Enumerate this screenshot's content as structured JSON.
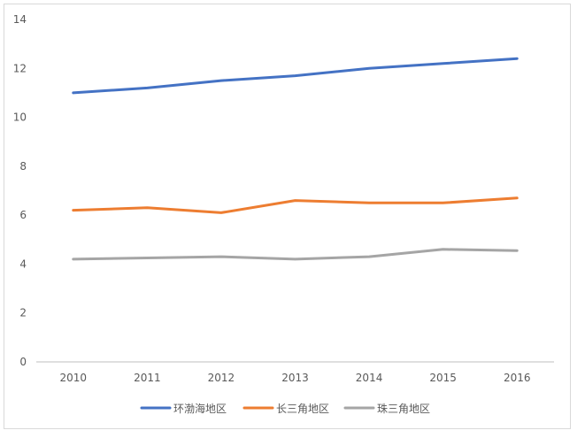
{
  "chart_data": {
    "type": "line",
    "title": "",
    "xlabel": "",
    "ylabel": "",
    "categories": [
      "2010",
      "2011",
      "2012",
      "2013",
      "2014",
      "2015",
      "2016"
    ],
    "ylim": [
      0,
      14
    ],
    "yticks": [
      0,
      2,
      4,
      6,
      8,
      10,
      12,
      14
    ],
    "grid": false,
    "legend_position": "bottom",
    "series": [
      {
        "name": "环渤海地区",
        "color": "#4472c4",
        "values": [
          11.0,
          11.2,
          11.5,
          11.7,
          12.0,
          12.2,
          12.4
        ]
      },
      {
        "name": "长三角地区",
        "color": "#ed7d31",
        "values": [
          6.2,
          6.3,
          6.1,
          6.6,
          6.5,
          6.5,
          6.7
        ]
      },
      {
        "name": "珠三角地区",
        "color": "#a5a5a5",
        "values": [
          4.2,
          4.25,
          4.3,
          4.2,
          4.3,
          4.6,
          4.55
        ]
      }
    ]
  }
}
